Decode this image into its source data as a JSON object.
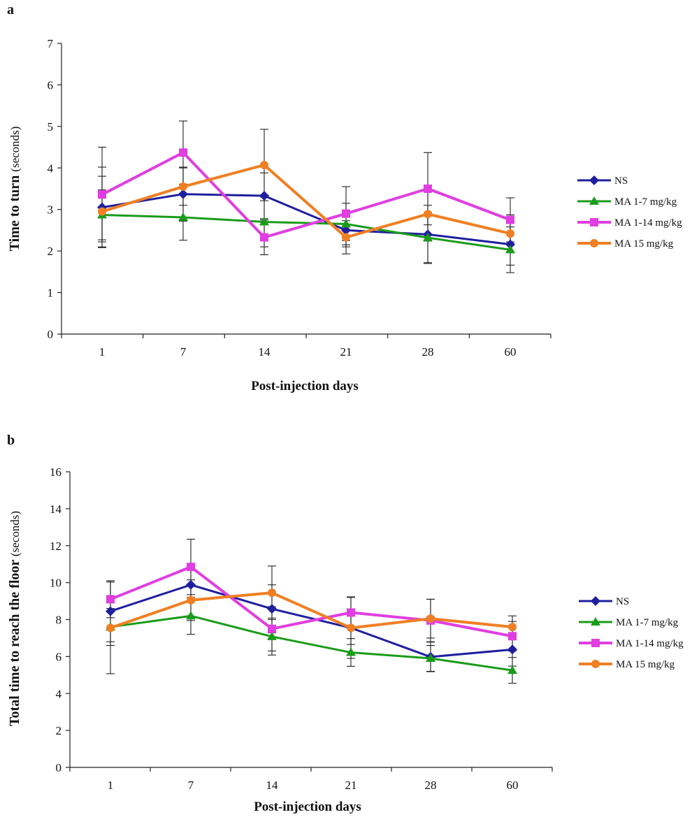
{
  "chart_data": [
    {
      "panel": "a",
      "type": "line",
      "xlabel": "Post-injection days",
      "ylabel": "Time to turn",
      "ylabel_unit": "(seconds)",
      "categories": [
        "1",
        "7",
        "14",
        "21",
        "28",
        "60"
      ],
      "ylim": [
        0,
        7
      ],
      "yticks": [
        0,
        1,
        2,
        3,
        4,
        5,
        6,
        7
      ],
      "grid": false,
      "legend_position": "right",
      "series": [
        {
          "name": "NS",
          "color": "#1f1f9e",
          "marker": "diamond",
          "values": [
            3.05,
            3.37,
            3.33,
            2.5,
            2.4,
            2.16
          ],
          "err": [
            0.97,
            0.65,
            0.55,
            0.4,
            0.7,
            0.5
          ]
        },
        {
          "name": "MA 1-7 mg/kg",
          "color": "#1a9c1a",
          "marker": "triangle",
          "values": [
            2.87,
            2.81,
            2.7,
            2.65,
            2.32,
            2.03
          ],
          "err": [
            0.6,
            0.55,
            0.6,
            0.5,
            0.6,
            0.55
          ]
        },
        {
          "name": "MA 1-14 mg/kg",
          "color": "#e03ee0",
          "marker": "square",
          "values": [
            3.36,
            4.37,
            2.33,
            2.9,
            3.5,
            2.75
          ],
          "err": [
            1.14,
            0.76,
            0.42,
            0.65,
            0.87,
            0.53
          ]
        },
        {
          "name": "MA 15 mg/kg",
          "color": "#f07f23",
          "marker": "circle",
          "values": [
            2.95,
            3.55,
            4.07,
            2.33,
            2.89,
            2.42
          ],
          "err": [
            0.85,
            0.45,
            0.86,
            0.4,
            0.65,
            0.45
          ]
        }
      ]
    },
    {
      "panel": "b",
      "type": "line",
      "xlabel": "Post-injection days",
      "ylabel": "Total time to reach the floor",
      "ylabel_unit": "(seconds)",
      "categories": [
        "1",
        "7",
        "14",
        "21",
        "28",
        "60"
      ],
      "ylim": [
        0,
        16
      ],
      "yticks": [
        0,
        2,
        4,
        6,
        8,
        10,
        12,
        14,
        16
      ],
      "grid": false,
      "legend_position": "right",
      "series": [
        {
          "name": "NS",
          "color": "#1f1f9e",
          "marker": "diamond",
          "values": [
            8.45,
            9.88,
            8.58,
            7.55,
            5.98,
            6.38
          ],
          "err": [
            1.65,
            0.9,
            1.3,
            0.9,
            0.8,
            0.9
          ]
        },
        {
          "name": "MA 1-7 mg/kg",
          "color": "#1a9c1a",
          "marker": "triangle",
          "values": [
            7.6,
            8.2,
            7.08,
            6.22,
            5.9,
            5.25
          ],
          "err": [
            1.0,
            1.0,
            1.0,
            0.75,
            0.7,
            0.7
          ]
        },
        {
          "name": "MA 1-14 mg/kg",
          "color": "#e03ee0",
          "marker": "square",
          "values": [
            9.1,
            10.85,
            7.5,
            8.38,
            7.95,
            7.1
          ],
          "err": [
            1.0,
            1.5,
            1.2,
            0.85,
            1.15,
            0.8
          ]
        },
        {
          "name": "MA 15 mg/kg",
          "color": "#f07f23",
          "marker": "circle",
          "values": [
            7.55,
            9.05,
            9.45,
            7.55,
            8.05,
            7.6
          ],
          "err": [
            2.48,
            1.1,
            1.45,
            1.65,
            1.05,
            0.6
          ]
        }
      ]
    }
  ]
}
